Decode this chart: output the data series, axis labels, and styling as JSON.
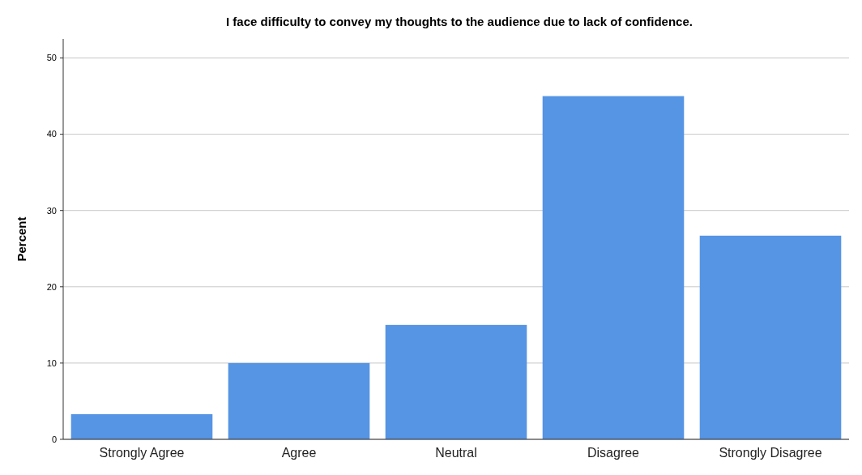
{
  "chart_data": {
    "type": "bar",
    "title": "I face difficulty to convey my thoughts to the audience due to lack of confidence.",
    "ylabel": "Percent",
    "categories": [
      "Strongly Agree",
      "Agree",
      "Neutral",
      "Disagree",
      "Strongly Disagree"
    ],
    "values": [
      3.3,
      10,
      15,
      45,
      26.7
    ],
    "color": "#5694e4",
    "ylim": [
      0,
      52.5
    ],
    "yticks": [
      0,
      10,
      20,
      30,
      40,
      50
    ],
    "grid": "y"
  }
}
